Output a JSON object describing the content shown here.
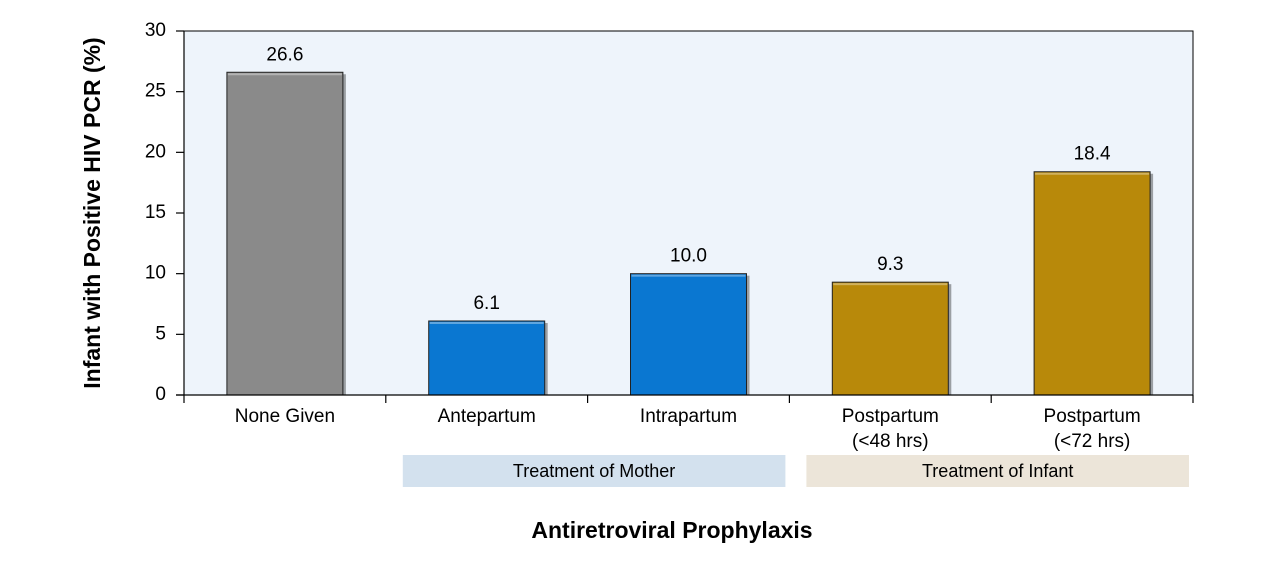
{
  "chart_data": {
    "type": "bar",
    "title": "",
    "xlabel": "Antiretroviral Prophylaxis",
    "ylabel": "Infant with Positive HIV PCR (%)",
    "ylim": [
      0,
      30
    ],
    "yticks": [
      0,
      5,
      10,
      15,
      20,
      25,
      30
    ],
    "categories": [
      [
        "None Given"
      ],
      [
        "Antepartum"
      ],
      [
        "Intrapartum"
      ],
      [
        "Postpartum",
        "(<48 hrs)"
      ],
      [
        "Postpartum",
        "(<72 hrs)"
      ]
    ],
    "values": [
      26.6,
      6.1,
      10.0,
      9.3,
      18.4
    ],
    "value_labels": [
      "26.6",
      "6.1",
      "10.0",
      "9.3",
      "18.4"
    ],
    "bar_colors": [
      "#8a8a8a",
      "#0a77d1",
      "#0a77d1",
      "#b8890a",
      "#b8890a"
    ],
    "plot_background": "#eef4fb",
    "groups": [
      {
        "label": "Treatment of Mother",
        "from": 1,
        "to": 2,
        "color": "#d3e1ee"
      },
      {
        "label": "Treatment of Infant",
        "from": 3,
        "to": 4,
        "color": "#ece5d9"
      }
    ]
  }
}
